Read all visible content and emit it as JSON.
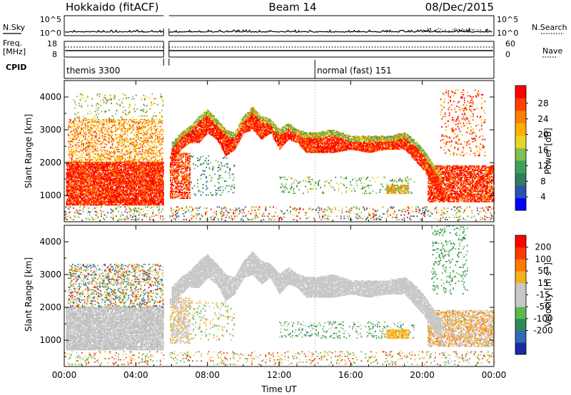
{
  "header": {
    "station": "Hokkaido (fitACF)",
    "beam": "Beam 14",
    "date": "08/Dec/2015"
  },
  "top_panels": {
    "nsky": {
      "label": "N.Sky",
      "ticks": [
        "10^5",
        "10^0"
      ],
      "right_ticks": [
        "10^5",
        "10^0"
      ],
      "right_label": "N.Search"
    },
    "freq": {
      "label_line1": "Freq.",
      "label_line2": "[MHz]",
      "ticks": [
        "18",
        "8"
      ],
      "right_ticks": [
        "60",
        "0"
      ],
      "right_label": "Nave"
    },
    "cpid": {
      "label": "CPID",
      "segments": [
        {
          "label": "themis 3300",
          "start_h": 0.0
        },
        {
          "label": "normal (fast) 151",
          "start_h": 14.0
        }
      ]
    },
    "data_gap_h": [
      5.55,
      5.85
    ]
  },
  "power_colorbar": {
    "label": "Power [dB]",
    "ticks": [
      "4",
      "8",
      "12",
      "16",
      "20",
      "24",
      "28"
    ],
    "colors": [
      "#0000ff",
      "#2a52b0",
      "#2e7d5e",
      "#3fa05a",
      "#7fc050",
      "#e6d42a",
      "#ffb000",
      "#ff8000",
      "#ff4000",
      "#ff0000"
    ]
  },
  "velocity_colorbar": {
    "label": "Velocity [m s",
    "label_sup": "-1",
    "label_end": "]",
    "ticks": [
      "200",
      "100",
      "50",
      "15",
      "-15",
      "-50",
      "-100",
      "-200"
    ],
    "colors": [
      "#1a2aa8",
      "#2e6cb4",
      "#2e8a5a",
      "#5cb94c",
      "#c8c8c8",
      "#c8c8c8",
      "#f5b020",
      "#ff7a00",
      "#ff3a00",
      "#ff0000"
    ]
  },
  "chart_data": [
    {
      "type": "heatmap",
      "variable": "Power",
      "ylabel": "Slant Range [km]",
      "ylim": [
        200,
        4500
      ],
      "yticks": [
        1000,
        2000,
        3000,
        4000
      ],
      "xlim": [
        0,
        24
      ],
      "xticks": [
        "00:00",
        "04:00",
        "08:00",
        "12:00",
        "16:00",
        "20:00",
        "00:00"
      ],
      "scatter_bands": [
        {
          "t0": 0.1,
          "t1": 5.5,
          "lo": 700,
          "hi": 2000,
          "colors": [
            "#ff0000",
            "#ff4000",
            "#ff0000",
            "#ff8000"
          ],
          "density": 0.85
        },
        {
          "t0": 0.2,
          "t1": 5.5,
          "lo": 2000,
          "hi": 3300,
          "colors": [
            "#ff8000",
            "#ffb000",
            "#e6d42a",
            "#ff4000"
          ],
          "density": 0.35
        },
        {
          "t0": 0.5,
          "t1": 5.5,
          "lo": 3300,
          "hi": 4100,
          "colors": [
            "#7fc050",
            "#e6d42a",
            "#ff8000",
            "#3fa05a"
          ],
          "density": 0.08
        },
        {
          "t0": 5.9,
          "t1": 7.0,
          "lo": 900,
          "hi": 2300,
          "colors": [
            "#ff0000",
            "#ff4000",
            "#ff8000"
          ],
          "density": 0.55
        },
        {
          "t0": 7.0,
          "t1": 9.5,
          "lo": 1000,
          "hi": 2200,
          "colors": [
            "#3fa05a",
            "#2e7d5e",
            "#2a52b0",
            "#7fc050"
          ],
          "density": 0.1
        },
        {
          "t0": 12.0,
          "t1": 19.5,
          "lo": 1050,
          "hi": 1550,
          "colors": [
            "#3fa05a",
            "#7fc050",
            "#2e7d5e",
            "#e6d42a"
          ],
          "density": 0.12
        },
        {
          "t0": 18.0,
          "t1": 19.2,
          "lo": 1050,
          "hi": 1300,
          "colors": [
            "#ff8000",
            "#ffb000",
            "#7fc050"
          ],
          "density": 0.7
        },
        {
          "t0": 20.3,
          "t1": 24.0,
          "lo": 800,
          "hi": 1900,
          "colors": [
            "#ff0000",
            "#ff4000",
            "#ff8000",
            "#ff0000"
          ],
          "density": 0.7
        },
        {
          "t0": 21.0,
          "t1": 23.5,
          "lo": 2200,
          "hi": 4200,
          "colors": [
            "#ff0000",
            "#ff4000",
            "#ffb000"
          ],
          "density": 0.12
        },
        {
          "t0": 0.0,
          "t1": 24.0,
          "lo": 250,
          "hi": 650,
          "colors": [
            "#3fa05a",
            "#2a52b0",
            "#ff8000",
            "#7fc050",
            "#ff0000",
            "#e6d42a"
          ],
          "density": 0.15
        }
      ],
      "main_band": {
        "t": [
          6.0,
          6.5,
          7.0,
          7.5,
          8.0,
          8.5,
          9.0,
          9.5,
          10.0,
          10.5,
          11.0,
          11.5,
          12.0,
          12.5,
          13.0,
          13.5,
          14.0,
          15.0,
          16.0,
          17.0,
          18.0,
          19.0,
          19.5,
          20.0,
          20.5,
          21.0
        ],
        "lo": [
          2000,
          2400,
          2600,
          2600,
          2900,
          2700,
          2200,
          2400,
          2900,
          3000,
          2700,
          2900,
          2400,
          2700,
          2600,
          2300,
          2300,
          2300,
          2400,
          2300,
          2400,
          2400,
          2100,
          1800,
          1400,
          1000
        ],
        "hi": [
          2600,
          2900,
          3100,
          3400,
          3600,
          3300,
          3000,
          2900,
          3400,
          3700,
          3400,
          3300,
          3000,
          3200,
          3000,
          2900,
          2900,
          3000,
          2800,
          2800,
          2800,
          2900,
          2700,
          2400,
          2000,
          1600
        ]
      }
    },
    {
      "type": "heatmap",
      "variable": "Velocity",
      "ylabel": "Slant Range [km]",
      "xlabel": "Time UT",
      "ylim": [
        200,
        4500
      ],
      "yticks": [
        1000,
        2000,
        3000,
        4000
      ],
      "xlim": [
        0,
        24
      ],
      "xticks": [
        "00:00",
        "04:00",
        "08:00",
        "12:00",
        "16:00",
        "20:00",
        "00:00"
      ],
      "scatter_bands": [
        {
          "t0": 0.1,
          "t1": 5.5,
          "lo": 700,
          "hi": 2000,
          "colors": [
            "#c8c8c8",
            "#c8c8c8",
            "#c8c8c8",
            "#b8b8b8"
          ],
          "density": 0.85
        },
        {
          "t0": 0.2,
          "t1": 5.5,
          "lo": 2000,
          "hi": 3300,
          "colors": [
            "#c8c8c8",
            "#f5b020",
            "#2e6cb4",
            "#ff3a00",
            "#5cb94c"
          ],
          "density": 0.3
        },
        {
          "t0": 5.9,
          "t1": 7.0,
          "lo": 900,
          "hi": 2300,
          "colors": [
            "#c8c8c8",
            "#f5b020",
            "#c8c8c8"
          ],
          "density": 0.5
        },
        {
          "t0": 7.0,
          "t1": 9.5,
          "lo": 1000,
          "hi": 2200,
          "colors": [
            "#c8c8c8",
            "#f5b020",
            "#5cb94c"
          ],
          "density": 0.1
        },
        {
          "t0": 12.0,
          "t1": 19.5,
          "lo": 1050,
          "hi": 1550,
          "colors": [
            "#5cb94c",
            "#c8c8c8",
            "#2e8a5a"
          ],
          "density": 0.15
        },
        {
          "t0": 18.0,
          "t1": 19.2,
          "lo": 1050,
          "hi": 1300,
          "colors": [
            "#f5b020",
            "#ffb000"
          ],
          "density": 0.75
        },
        {
          "t0": 20.3,
          "t1": 24.0,
          "lo": 800,
          "hi": 1900,
          "colors": [
            "#c8c8c8",
            "#c8c8c8",
            "#f5b020",
            "#ff7a00"
          ],
          "density": 0.6
        },
        {
          "t0": 20.5,
          "t1": 22.5,
          "lo": 2400,
          "hi": 4500,
          "colors": [
            "#5cb94c",
            "#2e8a5a"
          ],
          "density": 0.12
        },
        {
          "t0": 0.0,
          "t1": 24.0,
          "lo": 250,
          "hi": 650,
          "colors": [
            "#5cb94c",
            "#f5b020",
            "#ff3a00",
            "#c8c8c8"
          ],
          "density": 0.12
        }
      ],
      "main_band": {
        "t": [
          6.0,
          6.5,
          7.0,
          7.5,
          8.0,
          8.5,
          9.0,
          9.5,
          10.0,
          10.5,
          11.0,
          11.5,
          12.0,
          12.5,
          13.0,
          13.5,
          14.0,
          15.0,
          16.0,
          17.0,
          18.0,
          19.0,
          19.5,
          20.0,
          20.5,
          21.0
        ],
        "lo": [
          2000,
          2400,
          2600,
          2600,
          2900,
          2700,
          2200,
          2400,
          2900,
          3000,
          2700,
          2900,
          2400,
          2700,
          2600,
          2300,
          2300,
          2300,
          2400,
          2300,
          2400,
          2400,
          2100,
          1800,
          1400,
          1000
        ],
        "hi": [
          2600,
          2900,
          3100,
          3400,
          3600,
          3300,
          3000,
          2900,
          3400,
          3700,
          3400,
          3300,
          3000,
          3200,
          3000,
          2900,
          2900,
          3000,
          2800,
          2800,
          2800,
          2900,
          2700,
          2400,
          2000,
          1600
        ]
      },
      "main_band_colors": [
        "#c8c8c8"
      ]
    }
  ]
}
